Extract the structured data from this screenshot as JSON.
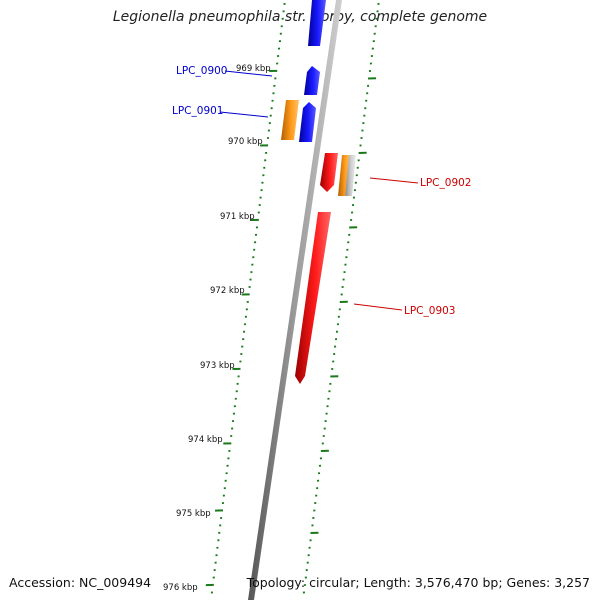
{
  "title": "Legionella pneumophila str. Corby, complete genome",
  "footer": {
    "accession": "Accession: NC_009494",
    "summary": "Topology: circular; Length: 3,576,470 bp; Genes: 3,257"
  },
  "scale_labels": [
    "969 kbp",
    "970 kbp",
    "971 kbp",
    "972 kbp",
    "973 kbp",
    "974 kbp",
    "975 kbp",
    "976 kbp"
  ],
  "genes": [
    {
      "name": "LPC_0900",
      "strand": "plus",
      "color": "#0000cc"
    },
    {
      "name": "LPC_0901",
      "strand": "plus",
      "color": "#0000cc"
    },
    {
      "name": "LPC_0902",
      "strand": "minus",
      "color": "#cc0000"
    },
    {
      "name": "LPC_0903",
      "strand": "minus",
      "color": "#cc0000"
    }
  ],
  "colors": {
    "plus_strand_gene": "#0000ff",
    "minus_strand_gene": "#ff0000",
    "rna_feature": "#ff8c00",
    "other_feature": "#c0c0c0",
    "backbone": "#888888",
    "tick": "#1a7a1a",
    "plus_label": "#0000cc",
    "minus_label": "#cc0000"
  }
}
